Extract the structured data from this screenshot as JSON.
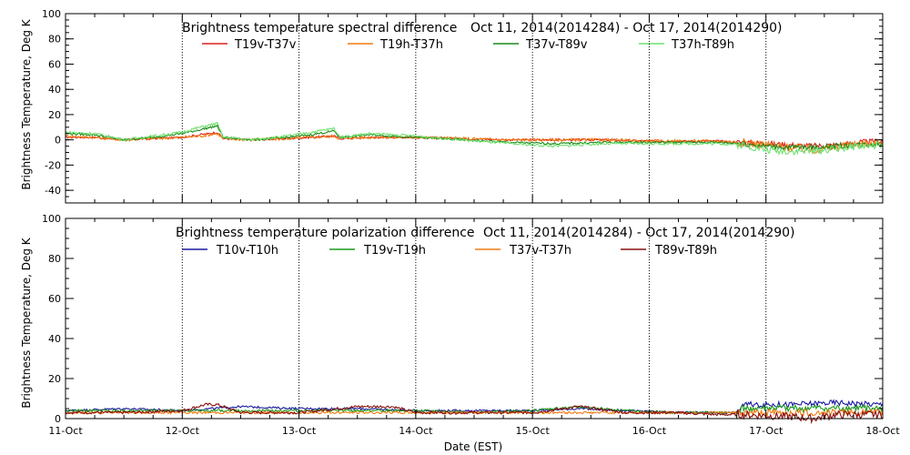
{
  "xaxis": {
    "label": "Date (EST)",
    "ticks": [
      "11-Oct",
      "12-Oct",
      "13-Oct",
      "14-Oct",
      "15-Oct",
      "16-Oct",
      "17-Oct",
      "18-Oct"
    ]
  },
  "chart_data": [
    {
      "type": "line",
      "title": "Brightness temperature spectral difference",
      "subtitle": "Oct 11, 2014(2014284) - Oct 17, 2014(2014290)",
      "ylabel": "Brightness Temperature, Deg K",
      "xlabel": "",
      "ylim": [
        -50,
        100
      ],
      "yticks": [
        -40,
        -20,
        0,
        20,
        40,
        60,
        80,
        100
      ],
      "xlim": [
        0,
        7
      ],
      "grid": "vertical dotted",
      "legend": "top",
      "series": [
        {
          "name": "T19v-T37v",
          "color": "#e0201c",
          "noise": 0.8,
          "x": [
            0,
            0.25,
            0.5,
            0.75,
            1.0,
            1.15,
            1.3,
            1.35,
            1.6,
            1.9,
            2.1,
            2.3,
            2.35,
            2.6,
            3.0,
            3.4,
            3.8,
            4.2,
            4.6,
            5.0,
            5.4,
            5.6,
            5.8,
            6.0,
            6.2,
            6.4,
            6.6,
            6.8,
            7.0
          ],
          "y": [
            2,
            2,
            0,
            1,
            2,
            4,
            6,
            1,
            0,
            1,
            2,
            3,
            1,
            2,
            2,
            1,
            0,
            0,
            0,
            -1,
            -1,
            -1,
            -2,
            -3,
            -4,
            -5,
            -4,
            -2,
            -1
          ]
        },
        {
          "name": "T19h-T37h",
          "color": "#f07a10",
          "noise": 1.2,
          "x": [
            0,
            0.25,
            0.5,
            0.75,
            1.0,
            1.15,
            1.3,
            1.35,
            1.6,
            1.9,
            2.1,
            2.3,
            2.35,
            2.6,
            3.0,
            3.4,
            3.8,
            4.2,
            4.6,
            5.0,
            5.4,
            5.6,
            5.8,
            6.0,
            6.2,
            6.4,
            6.6,
            6.8,
            7.0
          ],
          "y": [
            3,
            2,
            0,
            1,
            2,
            3,
            5,
            1,
            0,
            1,
            2,
            3,
            1,
            2,
            2,
            1,
            0,
            0,
            0,
            -1,
            -1,
            -1,
            -2,
            -4,
            -6,
            -8,
            -6,
            -3,
            -2
          ]
        },
        {
          "name": "T37v-T89v",
          "color": "#1a8a1a",
          "noise": 0.8,
          "x": [
            0,
            0.25,
            0.5,
            0.75,
            1.0,
            1.15,
            1.3,
            1.35,
            1.6,
            1.9,
            2.1,
            2.3,
            2.35,
            2.6,
            3.0,
            3.4,
            3.8,
            4.2,
            4.6,
            5.0,
            5.4,
            5.6,
            5.8,
            6.0,
            6.2,
            6.4,
            6.6,
            6.8,
            7.0
          ],
          "y": [
            5,
            4,
            0,
            2,
            5,
            8,
            11,
            2,
            0,
            2,
            4,
            7,
            2,
            4,
            2,
            0,
            -2,
            -3,
            -2,
            -2,
            -2,
            -2,
            -3,
            -5,
            -6,
            -6,
            -5,
            -4,
            -3
          ]
        },
        {
          "name": "T37h-T89h",
          "color": "#6ee06e",
          "noise": 1.0,
          "x": [
            0,
            0.25,
            0.5,
            0.75,
            1.0,
            1.15,
            1.3,
            1.35,
            1.6,
            1.9,
            2.1,
            2.3,
            2.35,
            2.6,
            3.0,
            3.4,
            3.8,
            4.2,
            4.6,
            5.0,
            5.4,
            5.6,
            5.8,
            6.0,
            6.2,
            6.4,
            6.6,
            6.8,
            7.0
          ],
          "y": [
            6,
            5,
            0,
            3,
            6,
            10,
            13,
            2,
            0,
            3,
            6,
            9,
            2,
            5,
            3,
            0,
            -3,
            -5,
            -3,
            -3,
            -3,
            -3,
            -4,
            -8,
            -9,
            -9,
            -7,
            -5,
            -4
          ]
        }
      ]
    },
    {
      "type": "line",
      "title": "Brightness temperature polarization difference",
      "subtitle": "Oct 11, 2014(2014284) - Oct 17, 2014(2014290)",
      "ylabel": "Brightness Temperature, Deg K",
      "xlabel": "Date (EST)",
      "ylim": [
        0,
        100
      ],
      "yticks": [
        0,
        20,
        40,
        60,
        80,
        100
      ],
      "xlim": [
        0,
        7
      ],
      "grid": "vertical dotted",
      "legend": "top",
      "series": [
        {
          "name": "T10v-T10h",
          "color": "#1a1aa0",
          "noise": 0.5,
          "x": [
            0,
            0.5,
            1.0,
            1.5,
            2.0,
            2.5,
            3.0,
            3.5,
            4.0,
            4.4,
            4.8,
            5.2,
            5.6,
            5.75,
            5.8,
            6.2,
            6.6,
            7.0
          ],
          "y": [
            4,
            5,
            4,
            6,
            5,
            5,
            4,
            4,
            4,
            5,
            4,
            3,
            3,
            3,
            7,
            7,
            8,
            7
          ]
        },
        {
          "name": "T19v-T19h",
          "color": "#1a9a1a",
          "noise": 0.6,
          "x": [
            0,
            0.5,
            1.0,
            1.5,
            2.0,
            2.5,
            3.0,
            3.5,
            4.0,
            4.4,
            4.8,
            5.2,
            5.6,
            5.75,
            5.8,
            6.2,
            6.6,
            7.0
          ],
          "y": [
            4,
            4,
            4,
            4,
            4,
            4,
            4,
            3,
            4,
            6,
            4,
            3,
            3,
            3,
            5,
            5,
            5,
            5
          ]
        },
        {
          "name": "T37v-T37h",
          "color": "#f07a10",
          "noise": 0.6,
          "x": [
            0,
            0.5,
            1.0,
            1.5,
            2.0,
            2.5,
            3.0,
            3.5,
            4.0,
            4.4,
            4.8,
            5.2,
            5.6,
            5.75,
            5.8,
            6.2,
            6.6,
            7.0
          ],
          "y": [
            3,
            3,
            3,
            3,
            3,
            3,
            3,
            3,
            3,
            3,
            3,
            3,
            3,
            3,
            3,
            3,
            3,
            3
          ]
        },
        {
          "name": "T89v-T89h",
          "color": "#8a1010",
          "noise": 0.7,
          "x": [
            0,
            0.5,
            1.0,
            1.2,
            1.3,
            1.5,
            2.0,
            2.5,
            2.8,
            3.0,
            3.5,
            4.0,
            4.4,
            4.8,
            5.2,
            5.6,
            5.75,
            5.8,
            6.2,
            6.4,
            6.6,
            7.0
          ],
          "y": [
            3,
            3,
            4,
            7,
            7,
            3,
            3,
            6,
            6,
            3,
            3,
            3,
            6,
            3,
            3,
            2,
            2,
            2,
            1,
            0,
            2,
            2
          ]
        }
      ]
    }
  ]
}
